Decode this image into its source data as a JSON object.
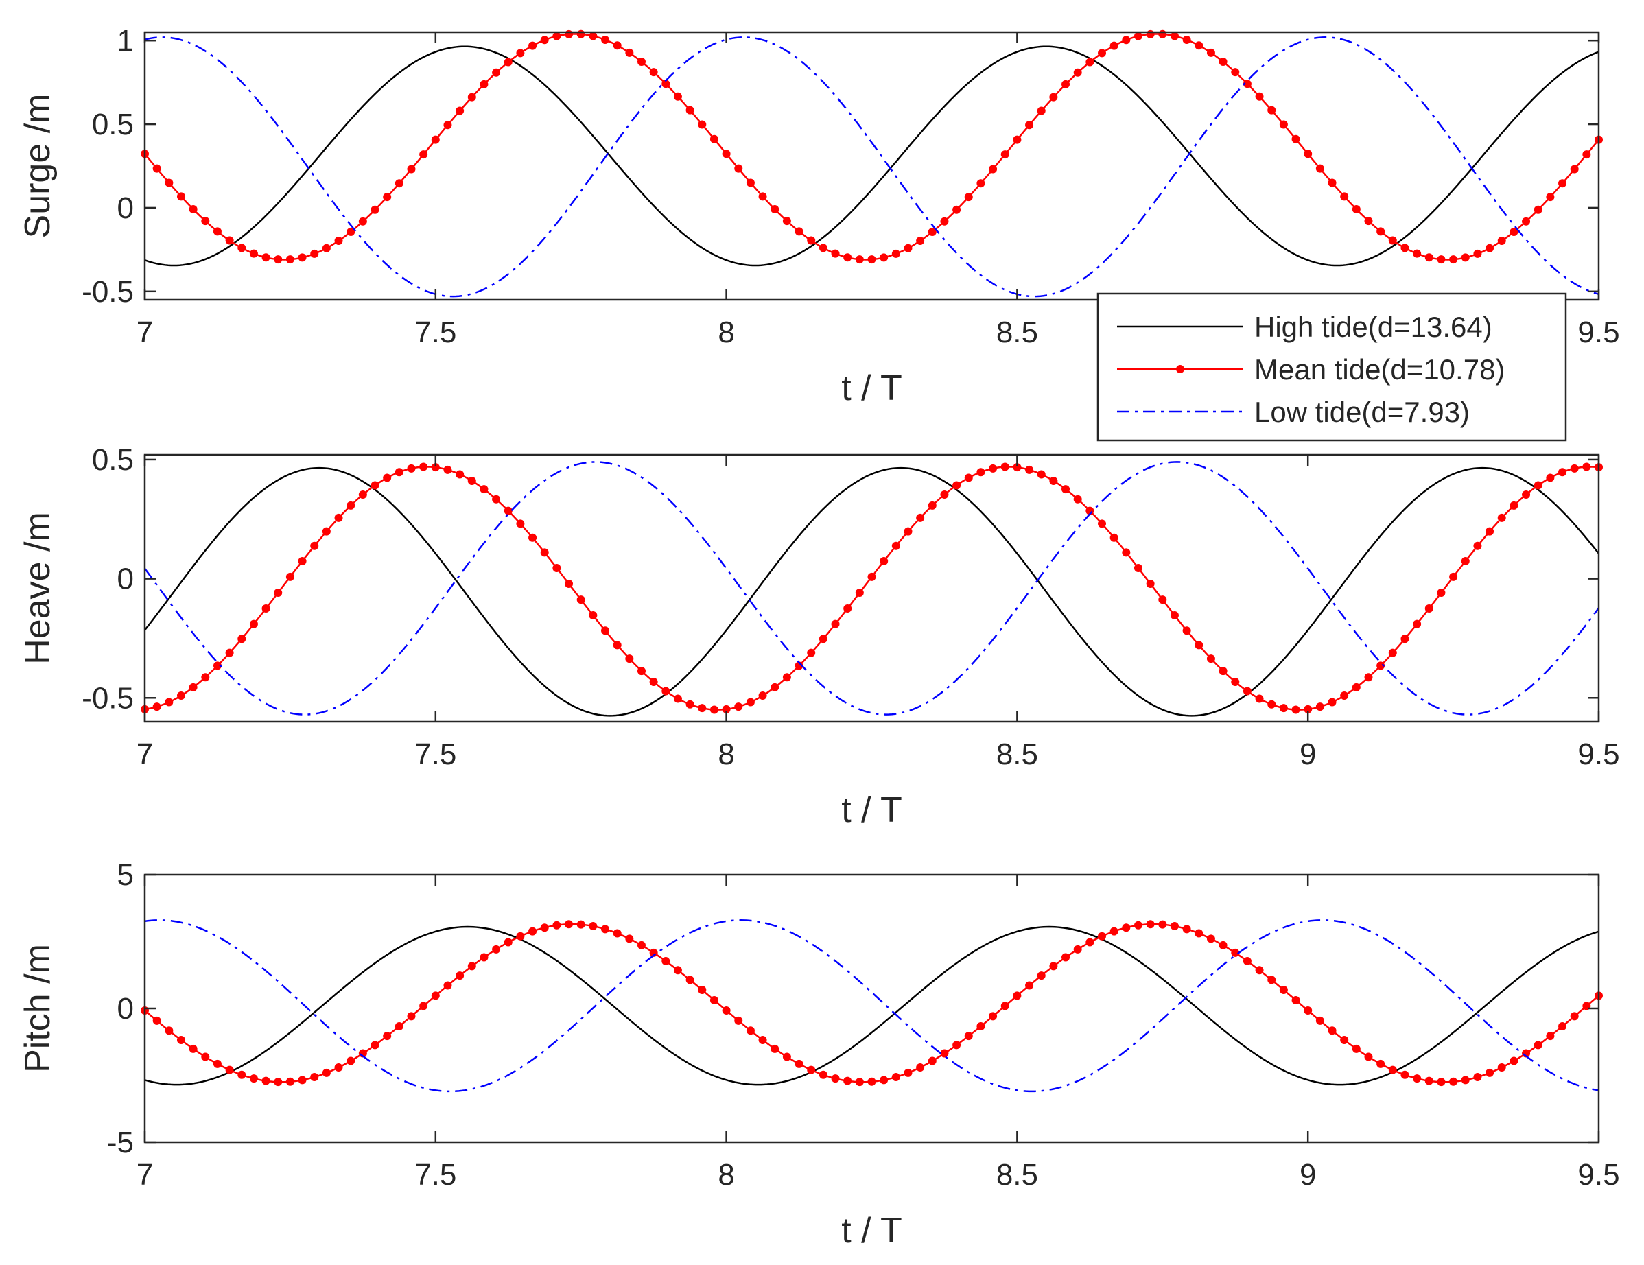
{
  "chart_data": [
    {
      "type": "line",
      "xlabel": "t / T",
      "ylabel": "Surge /m",
      "xlim": [
        7,
        9.5
      ],
      "ylim": [
        -0.55,
        1.05
      ],
      "xticks": [
        "7",
        "7.5",
        "8",
        "8.5",
        "9.5"
      ],
      "yticks": [
        "-0.5",
        "0",
        "0.5",
        "1"
      ],
      "grid": false,
      "legend": "bottom-right, overlapping axis",
      "series": [
        {
          "name": "High tide(d=13.64)",
          "color": "#000000",
          "style": "solid",
          "mean": 0.31,
          "amplitude": 0.655,
          "period": 1.0,
          "phase_peak": 7.55
        },
        {
          "name": "Mean tide(d=10.78)",
          "color": "#ff0000",
          "style": "solid-dot",
          "mean": 0.365,
          "amplitude": 0.675,
          "period": 1.0,
          "phase_peak": 7.74
        },
        {
          "name": "Low tide(d=7.93)",
          "color": "#0000ff",
          "style": "dashdot",
          "mean": 0.245,
          "amplitude": 0.775,
          "period": 1.0,
          "phase_peak": 8.03
        }
      ]
    },
    {
      "type": "line",
      "xlabel": "t / T",
      "ylabel": "Heave /m",
      "xlim": [
        7,
        9.5
      ],
      "ylim": [
        -0.6,
        0.52
      ],
      "xticks": [
        "7",
        "7.5",
        "8",
        "8.5",
        "9",
        "9.5"
      ],
      "yticks": [
        "-0.5",
        "0",
        "0.5"
      ],
      "grid": false,
      "series": [
        {
          "name": "High tide(d=13.64)",
          "color": "#000000",
          "style": "solid",
          "mean": -0.055,
          "amplitude": 0.52,
          "period": 1.0,
          "phase_peak": 7.3
        },
        {
          "name": "Mean tide(d=10.78)",
          "color": "#ff0000",
          "style": "solid-dot",
          "mean": -0.04,
          "amplitude": 0.51,
          "period": 1.0,
          "phase_peak": 7.485
        },
        {
          "name": "Low tide(d=7.93)",
          "color": "#0000ff",
          "style": "dashdot",
          "mean": -0.04,
          "amplitude": 0.53,
          "period": 1.0,
          "phase_peak": 7.775
        }
      ]
    },
    {
      "type": "line",
      "xlabel": "t / T",
      "ylabel": "Pitch /m",
      "xlim": [
        7,
        9.5
      ],
      "ylim": [
        -5,
        5
      ],
      "xticks": [
        "7",
        "7.5",
        "8",
        "8.5",
        "9",
        "9.5"
      ],
      "yticks": [
        "-5",
        "0",
        "5"
      ],
      "grid": false,
      "series": [
        {
          "name": "High tide(d=13.64)",
          "color": "#000000",
          "style": "solid",
          "mean": 0.1,
          "amplitude": 2.95,
          "period": 1.0,
          "phase_peak": 7.555
        },
        {
          "name": "Mean tide(d=10.78)",
          "color": "#ff0000",
          "style": "solid-dot",
          "mean": 0.2,
          "amplitude": 2.95,
          "period": 1.0,
          "phase_peak": 7.735
        },
        {
          "name": "Low tide(d=7.93)",
          "color": "#0000ff",
          "style": "dashdot",
          "mean": 0.1,
          "amplitude": 3.2,
          "period": 1.0,
          "phase_peak": 8.025
        }
      ]
    }
  ]
}
